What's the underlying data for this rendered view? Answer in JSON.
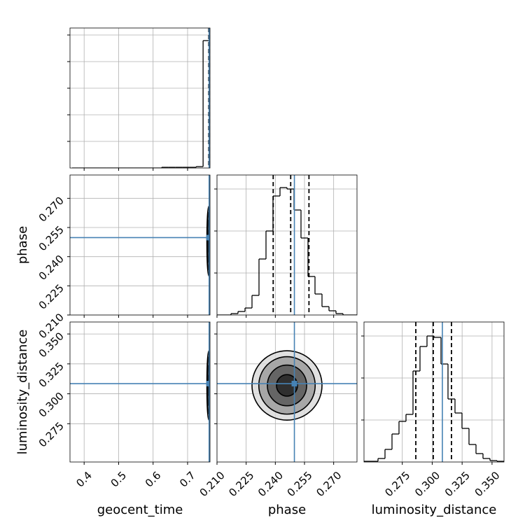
{
  "chart_data": {
    "type": "corner",
    "truth_color": "#4682b4",
    "hist_color": "#000000",
    "grid": true,
    "parameters": [
      {
        "label": "geocent_time",
        "lim": [
          0.359,
          0.765
        ],
        "ticks": [
          0.4,
          0.5,
          0.6,
          0.7
        ],
        "truth": 0.7625,
        "quantiles": [
          0.7615,
          0.763,
          0.7645
        ],
        "bins": [
          0.365,
          0.385,
          0.405,
          0.425,
          0.445,
          0.465,
          0.485,
          0.505,
          0.525,
          0.545,
          0.565,
          0.585,
          0.605,
          0.625,
          0.645,
          0.665,
          0.685,
          0.705,
          0.725,
          0.745,
          0.765
        ],
        "counts": [
          0,
          0,
          0,
          0,
          0,
          0,
          0,
          0,
          0,
          0,
          0,
          0,
          0,
          1,
          1,
          1,
          1,
          1,
          2,
          182
        ],
        "hist_ylim": [
          0,
          200
        ],
        "hist_yticks": [
          38,
          76,
          114,
          152,
          190
        ]
      },
      {
        "label": "phase",
        "lim": [
          0.21,
          0.282
        ],
        "ticks": [
          {
            "value": 0.21,
            "label": "0.210"
          },
          0.225,
          {
            "value": 0.24,
            "label": "0.240"
          },
          0.255,
          {
            "value": 0.27,
            "label": "0.270"
          }
        ],
        "truth": 0.2498,
        "quantiles": [
          0.2389,
          0.2479,
          0.2573
        ],
        "bins": [
          0.21,
          0.2136,
          0.2172,
          0.2208,
          0.2244,
          0.228,
          0.2316,
          0.2352,
          0.2388,
          0.2424,
          0.246,
          0.2496,
          0.2532,
          0.2568,
          0.2604,
          0.264,
          0.2676,
          0.2712,
          0.2748,
          0.2784,
          0.282
        ],
        "counts": [
          0,
          0,
          2,
          5,
          10,
          28,
          80,
          120,
          170,
          182,
          180,
          150,
          110,
          55,
          30,
          12,
          6,
          2,
          0,
          0
        ],
        "hist_ylim": [
          0,
          200
        ],
        "hist_yticks": [
          60,
          120,
          180
        ]
      },
      {
        "label": "luminosity_distance",
        "lim": [
          0.243,
          0.36
        ],
        "ticks": [
          0.275,
          {
            "value": 0.3,
            "label": "0.300"
          },
          0.325,
          {
            "value": 0.35,
            "label": "0.350"
          }
        ],
        "truth": 0.3085,
        "quantiles": [
          0.2863,
          0.3009,
          0.3161
        ],
        "bins": [
          0.243,
          0.24885,
          0.2547,
          0.26055,
          0.2664,
          0.27225,
          0.2781,
          0.28395,
          0.2898,
          0.29565,
          0.3015,
          0.30735,
          0.3132,
          0.31905,
          0.3249,
          0.33075,
          0.3366,
          0.34245,
          0.3483,
          0.35415,
          0.36
        ],
        "counts": [
          1,
          1,
          5,
          18,
          40,
          58,
          68,
          130,
          165,
          180,
          178,
          140,
          90,
          70,
          48,
          25,
          12,
          5,
          2,
          1
        ],
        "hist_ylim": [
          0,
          200
        ],
        "hist_yticks": [
          60,
          120,
          180
        ]
      }
    ],
    "pairs": [
      {
        "x": 0,
        "y": 1,
        "cx": 0.762,
        "cy": 0.248,
        "rx": [
          0.002,
          0.004,
          0.005,
          0.006
        ],
        "ry": [
          0.006,
          0.011,
          0.015,
          0.018
        ]
      },
      {
        "x": 0,
        "y": 2,
        "cx": 0.762,
        "cy": 0.307,
        "rx": [
          0.002,
          0.004,
          0.005,
          0.006
        ],
        "ry": [
          0.009,
          0.017,
          0.024,
          0.029
        ]
      },
      {
        "x": 1,
        "y": 2,
        "cx": 0.246,
        "cy": 0.307,
        "rx": [
          0.0054,
          0.0101,
          0.0145,
          0.018
        ],
        "ry": [
          0.009,
          0.017,
          0.024,
          0.029
        ]
      }
    ]
  }
}
